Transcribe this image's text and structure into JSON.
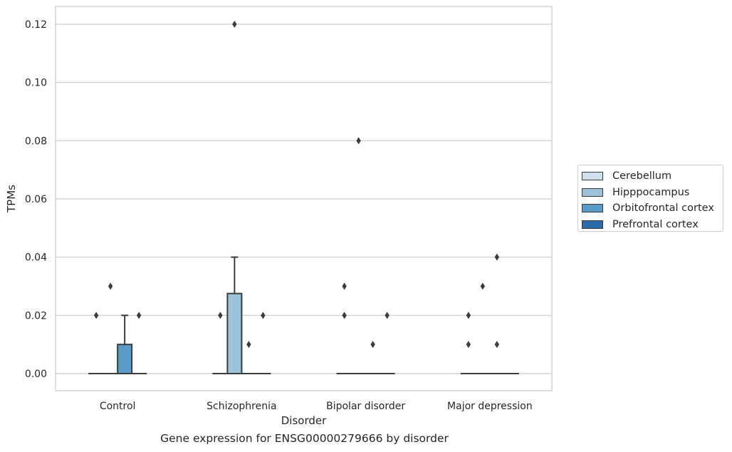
{
  "caption": "Gene expression for ENSG00000279666 by disorder",
  "chart_data": {
    "type": "box",
    "xlabel": "Disorder",
    "ylabel": "TPMs",
    "categories": [
      "Control",
      "Schizophrenia",
      "Bipolar disorder",
      "Major depression"
    ],
    "ylim": [
      -0.006,
      0.126
    ],
    "yticks": [
      0.0,
      0.02,
      0.04,
      0.06,
      0.08,
      0.1,
      0.12
    ],
    "ytick_labels": [
      "0.00",
      "0.02",
      "0.04",
      "0.06",
      "0.08",
      "0.10",
      "0.12"
    ],
    "grid": "horizontal",
    "legend_position": "right, outside plot",
    "series": [
      {
        "name": "Cerebellum",
        "color": "#d1e0ef",
        "boxes": [
          {
            "q1": 0,
            "median": 0,
            "q3": 0,
            "whisker_low": 0,
            "whisker_high": 0,
            "outliers": [
              0.02
            ]
          },
          {
            "q1": 0,
            "median": 0,
            "q3": 0,
            "whisker_low": 0,
            "whisker_high": 0,
            "outliers": [
              0.02
            ]
          },
          {
            "q1": 0,
            "median": 0,
            "q3": 0,
            "whisker_low": 0,
            "whisker_high": 0,
            "outliers": [
              0.02,
              0.03
            ]
          },
          {
            "q1": 0,
            "median": 0,
            "q3": 0,
            "whisker_low": 0,
            "whisker_high": 0,
            "outliers": [
              0.01,
              0.02
            ]
          }
        ]
      },
      {
        "name": "Hipppocampus",
        "color": "#9cc2dc",
        "boxes": [
          {
            "q1": 0,
            "median": 0,
            "q3": 0,
            "whisker_low": 0,
            "whisker_high": 0,
            "outliers": [
              0.03
            ]
          },
          {
            "q1": 0,
            "median": 0,
            "q3": 0.0275,
            "whisker_low": 0,
            "whisker_high": 0.04,
            "outliers": [
              0.12
            ]
          },
          {
            "q1": 0,
            "median": 0,
            "q3": 0,
            "whisker_low": 0,
            "whisker_high": 0,
            "outliers": [
              0.08
            ]
          },
          {
            "q1": 0,
            "median": 0,
            "q3": 0,
            "whisker_low": 0,
            "whisker_high": 0,
            "outliers": [
              0.03
            ]
          }
        ]
      },
      {
        "name": "Orbitofrontal cortex",
        "color": "#5a9bc8",
        "boxes": [
          {
            "q1": 0,
            "median": 0,
            "q3": 0.01,
            "whisker_low": 0,
            "whisker_high": 0.02,
            "outliers": []
          },
          {
            "q1": 0,
            "median": 0,
            "q3": 0,
            "whisker_low": 0,
            "whisker_high": 0,
            "outliers": [
              0.01
            ]
          },
          {
            "q1": 0,
            "median": 0,
            "q3": 0,
            "whisker_low": 0,
            "whisker_high": 0,
            "outliers": [
              0.01
            ]
          },
          {
            "q1": 0,
            "median": 0,
            "q3": 0,
            "whisker_low": 0,
            "whisker_high": 0,
            "outliers": [
              0.01,
              0.04
            ]
          }
        ]
      },
      {
        "name": "Prefrontal cortex",
        "color": "#2c6aa8",
        "boxes": [
          {
            "q1": 0,
            "median": 0,
            "q3": 0,
            "whisker_low": 0,
            "whisker_high": 0,
            "outliers": [
              0.02
            ]
          },
          {
            "q1": 0,
            "median": 0,
            "q3": 0,
            "whisker_low": 0,
            "whisker_high": 0,
            "outliers": [
              0.02
            ]
          },
          {
            "q1": 0,
            "median": 0,
            "q3": 0,
            "whisker_low": 0,
            "whisker_high": 0,
            "outliers": [
              0.02
            ]
          },
          {
            "q1": 0,
            "median": 0,
            "q3": 0,
            "whisker_low": 0,
            "whisker_high": 0,
            "outliers": []
          }
        ]
      }
    ]
  }
}
